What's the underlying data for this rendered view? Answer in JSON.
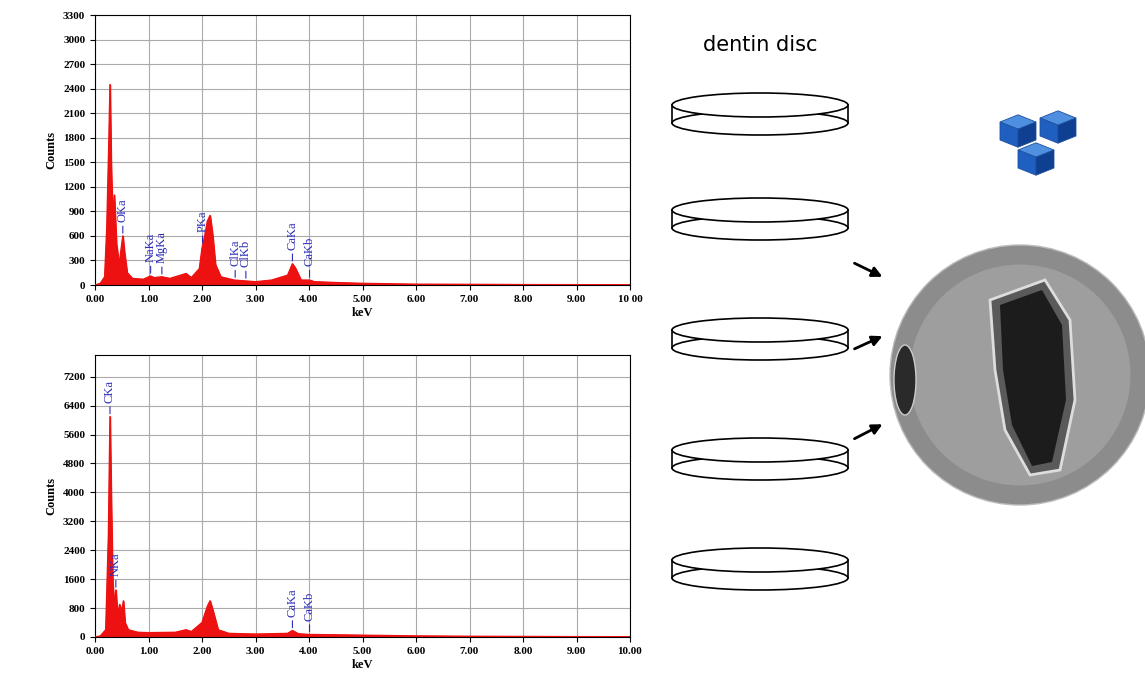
{
  "chart_data": [
    {
      "type": "area",
      "x_label": "keV",
      "y_label": "Counts",
      "color": "#ee1111",
      "grid": true,
      "x": [
        0.0,
        0.1,
        0.18,
        0.22,
        0.26,
        0.28,
        0.3,
        0.33,
        0.36,
        0.4,
        0.45,
        0.5,
        0.52,
        0.55,
        0.6,
        0.7,
        0.9,
        1.04,
        1.1,
        1.25,
        1.4,
        1.6,
        1.7,
        1.8,
        1.95,
        2.0,
        2.05,
        2.1,
        2.15,
        2.2,
        2.25,
        2.35,
        2.6,
        2.8,
        3.0,
        3.3,
        3.6,
        3.69,
        3.75,
        3.85,
        4.01,
        4.1,
        4.5,
        5.0,
        6.0,
        7.0,
        8.0,
        9.0,
        10.0
      ],
      "values": [
        0,
        20,
        100,
        700,
        1800,
        2450,
        1500,
        800,
        1100,
        500,
        250,
        500,
        600,
        400,
        150,
        80,
        70,
        110,
        90,
        100,
        80,
        120,
        140,
        90,
        200,
        450,
        600,
        780,
        850,
        600,
        250,
        100,
        60,
        50,
        40,
        60,
        120,
        260,
        200,
        60,
        60,
        40,
        30,
        20,
        10,
        8,
        5,
        4,
        3
      ],
      "xlim": [
        0,
        10
      ],
      "xticks": [
        {
          "value": 0,
          "label": "0.00"
        },
        {
          "value": 1,
          "label": "1.00"
        },
        {
          "value": 2,
          "label": "2.00"
        },
        {
          "value": 3,
          "label": "3.00"
        },
        {
          "value": 4,
          "label": "4.00"
        },
        {
          "value": 5,
          "label": "5.00"
        },
        {
          "value": 6,
          "label": "6.00"
        },
        {
          "value": 7,
          "label": "7.00"
        },
        {
          "value": 8,
          "label": "8.00"
        },
        {
          "value": 9,
          "label": "9.00"
        },
        {
          "value": 10,
          "label": "10 00"
        }
      ],
      "ylim": [
        0,
        3300
      ],
      "yticks": [
        0,
        300,
        600,
        900,
        1200,
        1500,
        1800,
        2100,
        2400,
        2700,
        3000,
        3300
      ],
      "annotations": [
        {
          "text": "OKa",
          "x": 0.52
        },
        {
          "text": "NaKa",
          "x": 1.04
        },
        {
          "text": "MgKa",
          "x": 1.25
        },
        {
          "text": "PKa",
          "x": 2.01
        },
        {
          "text": "ClKa",
          "x": 2.62
        },
        {
          "text": "ClKb",
          "x": 2.82
        },
        {
          "text": "CaKa",
          "x": 3.69
        },
        {
          "text": "CaKb",
          "x": 4.01
        }
      ]
    },
    {
      "type": "area",
      "x_label": "keV",
      "y_label": "Counts",
      "color": "#ee1111",
      "grid": true,
      "x": [
        0.0,
        0.1,
        0.2,
        0.25,
        0.28,
        0.3,
        0.33,
        0.36,
        0.39,
        0.42,
        0.46,
        0.5,
        0.53,
        0.56,
        0.62,
        0.8,
        1.0,
        1.5,
        1.7,
        1.8,
        2.0,
        2.1,
        2.15,
        2.2,
        2.3,
        2.5,
        3.0,
        3.6,
        3.69,
        3.8,
        4.0,
        5.0,
        6.0,
        7.0,
        8.0,
        9.0,
        10.0
      ],
      "values": [
        0,
        30,
        200,
        2800,
        6100,
        4000,
        1500,
        900,
        1300,
        600,
        900,
        700,
        1000,
        400,
        200,
        130,
        120,
        130,
        200,
        150,
        400,
        850,
        1000,
        750,
        200,
        100,
        80,
        100,
        180,
        90,
        70,
        50,
        30,
        20,
        15,
        10,
        8
      ],
      "xlim": [
        0,
        10
      ],
      "xticks": [
        {
          "value": 0,
          "label": "0.00"
        },
        {
          "value": 1,
          "label": "1.00"
        },
        {
          "value": 2,
          "label": "2.00"
        },
        {
          "value": 3,
          "label": "3.00"
        },
        {
          "value": 4,
          "label": "4.00"
        },
        {
          "value": 5,
          "label": "5.00"
        },
        {
          "value": 6,
          "label": "6.00"
        },
        {
          "value": 7,
          "label": "7.00"
        },
        {
          "value": 8,
          "label": "8.00"
        },
        {
          "value": 9,
          "label": "9.00"
        },
        {
          "value": 10,
          "label": "10.00"
        }
      ],
      "ylim": [
        0,
        7800
      ],
      "yticks": [
        0,
        800,
        1600,
        2400,
        3200,
        4000,
        4800,
        5600,
        6400,
        7200
      ],
      "annotations": [
        {
          "text": "CKa",
          "x": 0.28
        },
        {
          "text": "NKa",
          "x": 0.39
        },
        {
          "text": "CaKa",
          "x": 3.69
        },
        {
          "text": "CaKb",
          "x": 4.01
        }
      ]
    }
  ],
  "diagram": {
    "label": "dentin disc"
  }
}
